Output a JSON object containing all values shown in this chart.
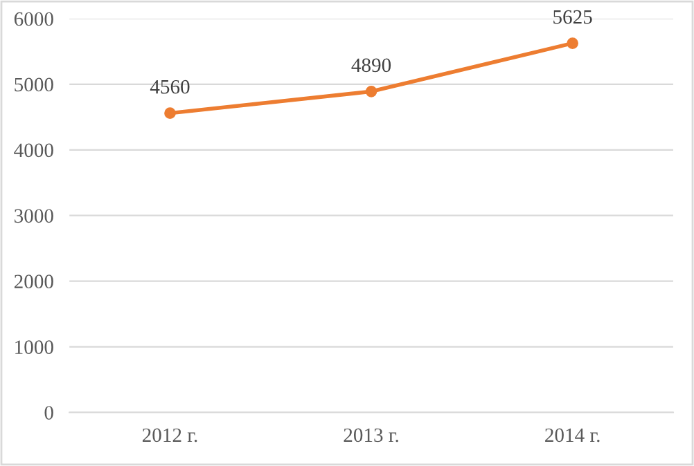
{
  "chart_data": {
    "type": "line",
    "categories": [
      "2012 г.",
      "2013 г.",
      "2014 г."
    ],
    "series": [
      {
        "color": "#ed7d31",
        "values": [
          4560,
          4890,
          5625
        ]
      }
    ],
    "ylim": [
      0,
      6000
    ],
    "yticks": [
      0,
      1000,
      2000,
      3000,
      4000,
      5000,
      6000
    ],
    "grid": "y",
    "marker": "circle",
    "line_style": "solid",
    "data_labels": true,
    "legend": false
  }
}
